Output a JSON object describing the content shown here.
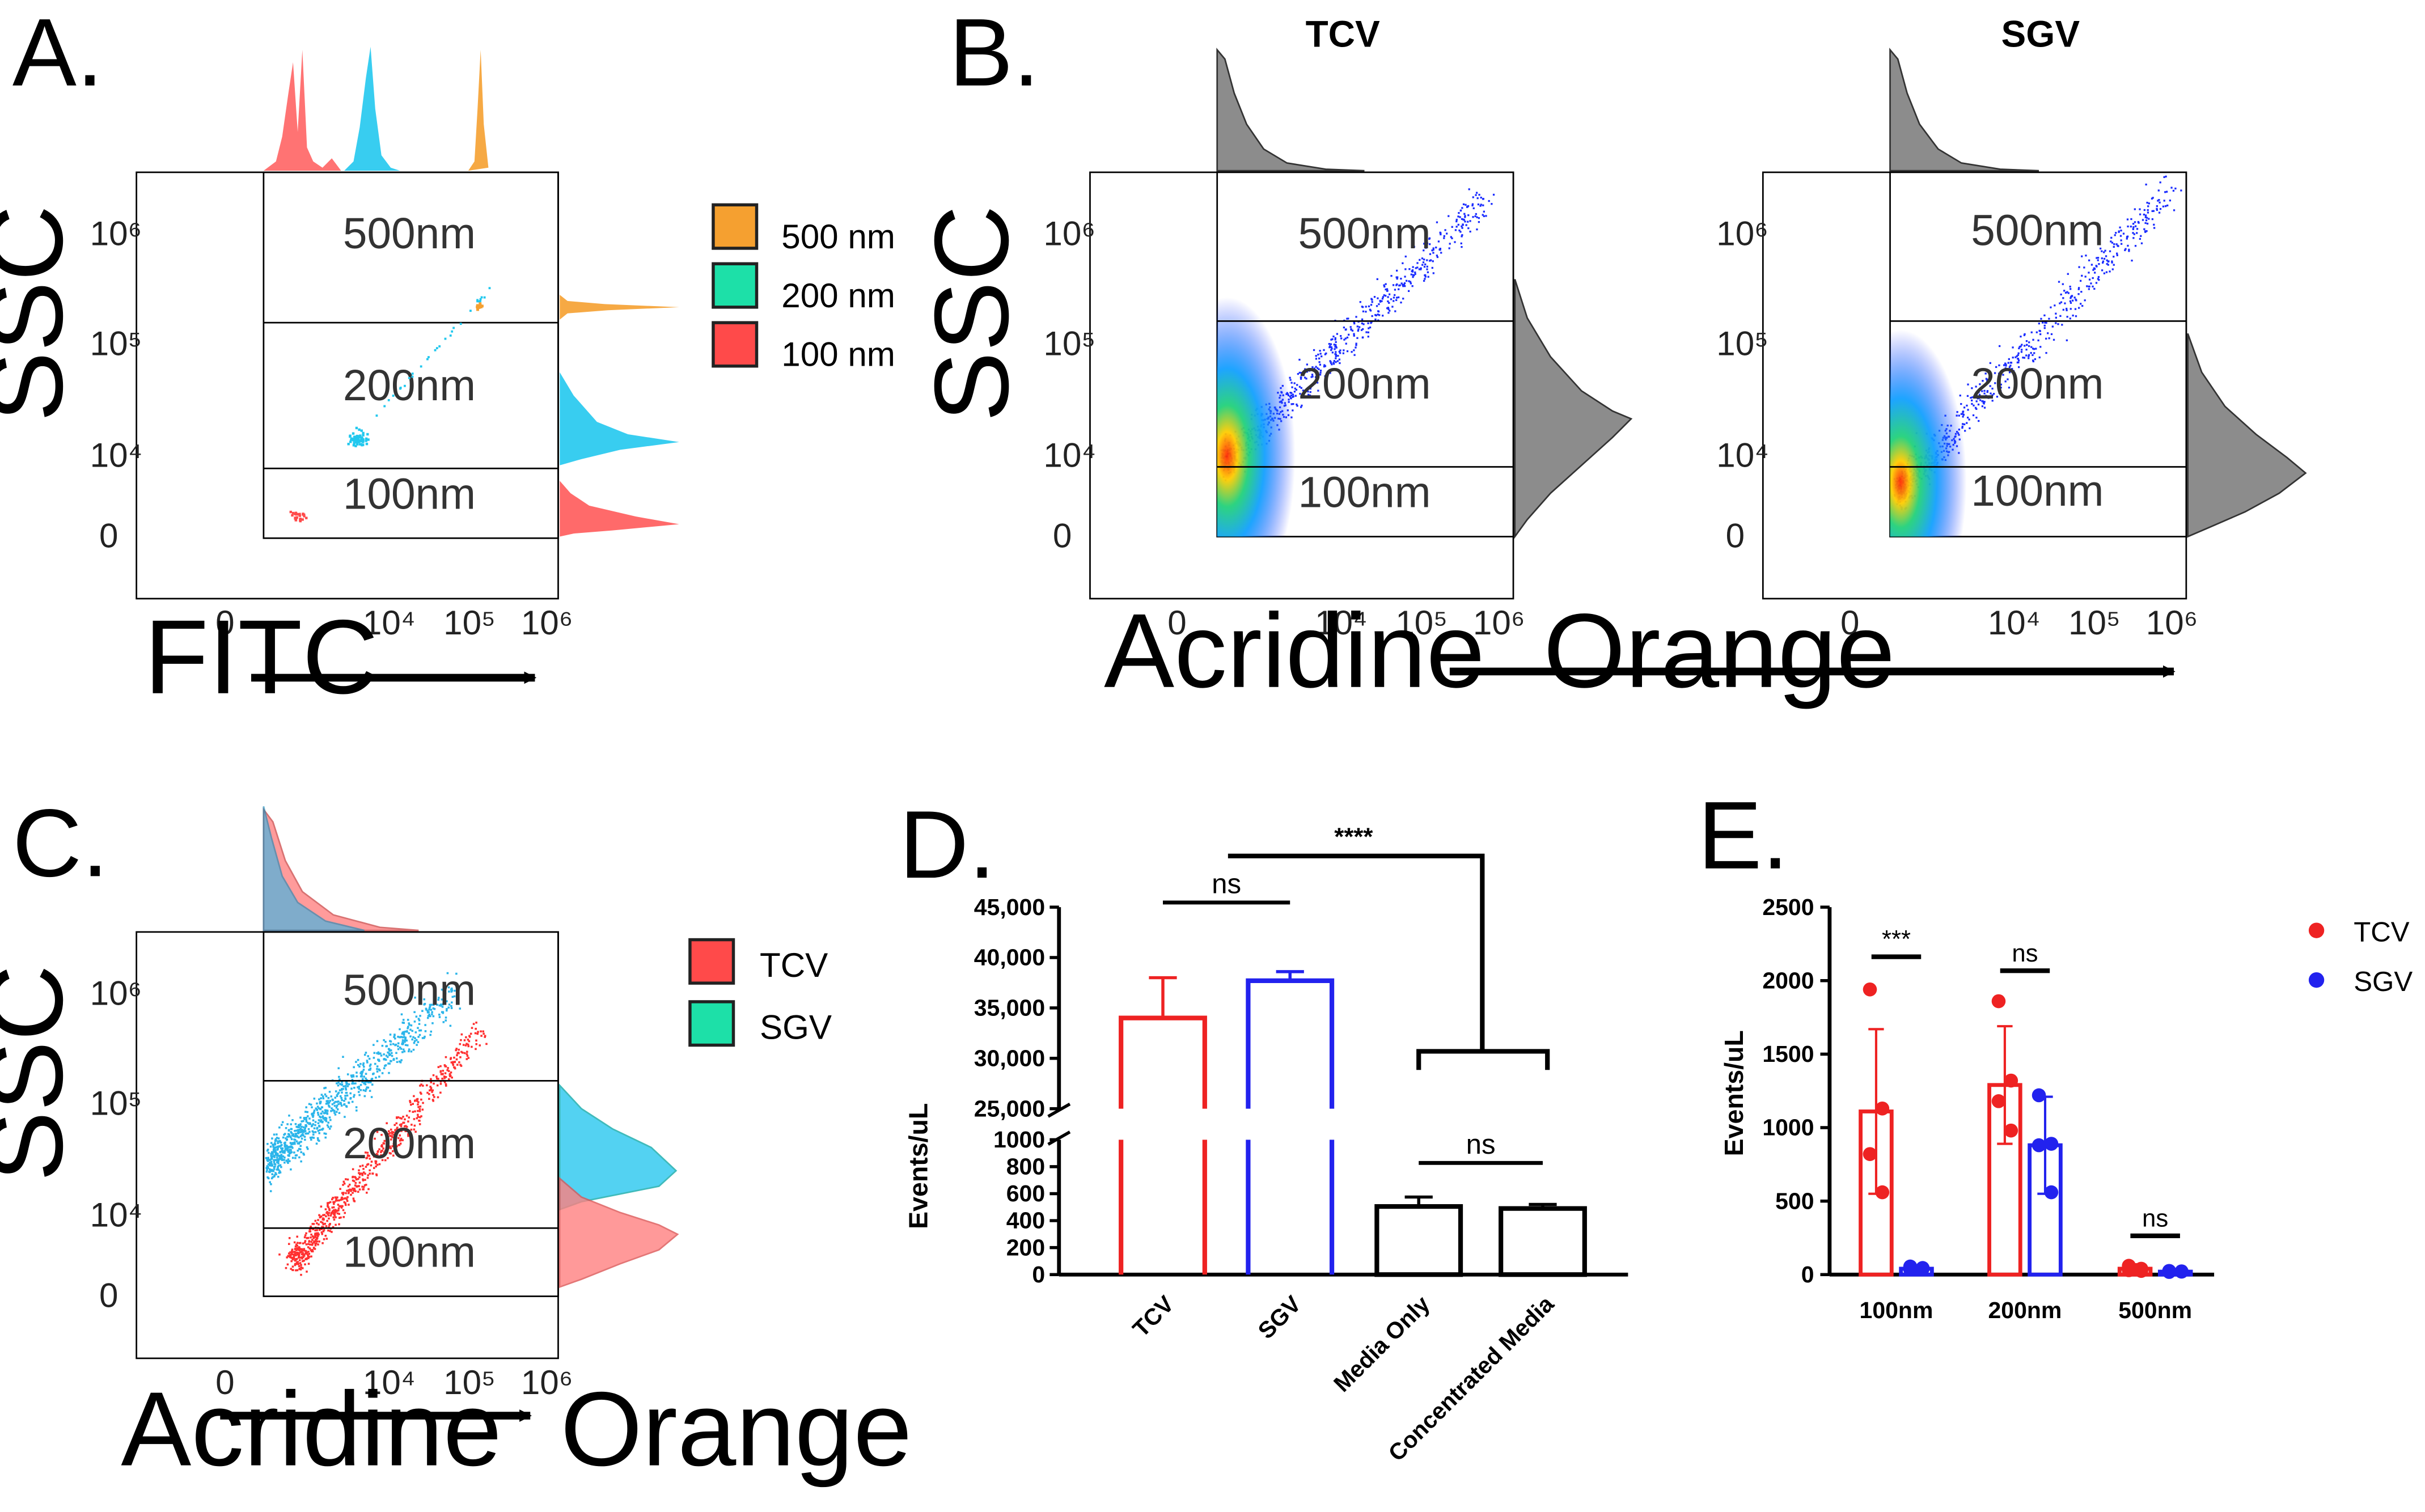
{
  "panels": {
    "a": {
      "label": "A.",
      "ylabel": "SSC",
      "xlabel": "FITC",
      "gates": [
        "500nm",
        "200nm",
        "100nm"
      ],
      "legend": [
        "500 nm",
        "200 nm",
        "100 nm"
      ]
    },
    "b": {
      "label": "B.",
      "titles": [
        "TCV",
        "SGV"
      ],
      "ylabel": "SSC",
      "xlabel": "Acridine  Orange"
    },
    "c": {
      "label": "C.",
      "ylabel": "SSC",
      "xlabel": "Acridine  Orange",
      "legend": [
        "TCV",
        "SGV"
      ]
    },
    "d": {
      "label": "D."
    },
    "e": {
      "label": "E."
    }
  },
  "axes": {
    "y_ticks": [
      "10⁶",
      "10⁵",
      "10⁴",
      "0"
    ],
    "x_ticks": [
      "0",
      "10⁴",
      "10⁵",
      "10⁶"
    ]
  },
  "colors": {
    "orange": "#f5a030",
    "cyan": "#22c8ee",
    "red": "#ff4a4a",
    "teal": "#1de0a8",
    "tcv_bar": "#ee2222",
    "sgv_bar": "#2222ee"
  },
  "chart_data": [
    {
      "type": "bar",
      "panel": "D",
      "ylabel": "Events/uL",
      "categories": [
        "TCV",
        "SGV",
        "Media Only",
        "Concentrated Media"
      ],
      "values": [
        34000,
        37700,
        505,
        490
      ],
      "errors": [
        4000,
        900,
        70,
        30
      ],
      "y_axis_break": {
        "lower": [
          0,
          1000
        ],
        "upper": [
          25000,
          45000
        ]
      },
      "lower_ticks": [
        "0",
        "200",
        "400",
        "600",
        "800",
        "1000"
      ],
      "upper_ticks": [
        "25,000",
        "30,000",
        "35,000",
        "40,000",
        "45,000"
      ],
      "significance": [
        {
          "groups": [
            "TCV",
            "SGV"
          ],
          "label": "ns"
        },
        {
          "groups": [
            "Media Only",
            "Concentrated Media"
          ],
          "label": "ns"
        },
        {
          "groups": [
            "TCV+SGV",
            "Media"
          ],
          "label": "****"
        }
      ]
    },
    {
      "type": "bar",
      "panel": "E",
      "ylabel": "Events/uL",
      "categories": [
        "100nm",
        "200nm",
        "500nm"
      ],
      "ylim": [
        0,
        2500
      ],
      "yticks": [
        "0",
        "500",
        "1000",
        "1500",
        "2000",
        "2500"
      ],
      "series": [
        {
          "name": "TCV",
          "values": [
            1110,
            1290,
            40
          ],
          "errors": [
            560,
            400,
            30
          ],
          "points": [
            [
              1940,
              1130,
              820,
              560
            ],
            [
              1860,
              1320,
              1180,
              980
            ],
            [
              60,
              40,
              30,
              25
            ]
          ]
        },
        {
          "name": "SGV",
          "values": [
            40,
            880,
            20
          ],
          "errors": [
            20,
            330,
            10
          ],
          "points": [
            [
              55,
              45,
              35,
              40
            ],
            [
              1220,
              890,
              880,
              560
            ],
            [
              25,
              20,
              18,
              22
            ]
          ]
        }
      ],
      "significance": [
        "***",
        "ns",
        "ns"
      ]
    }
  ]
}
